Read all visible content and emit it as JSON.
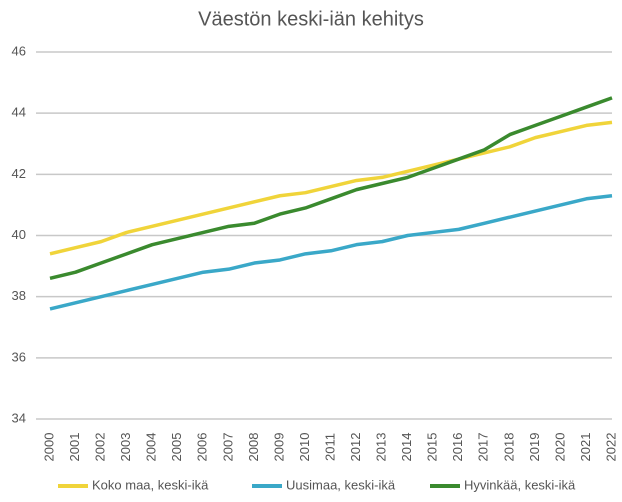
{
  "chart_data": {
    "type": "line",
    "title": "Väestön keski-iän kehitys",
    "categories": [
      "2000",
      "2001",
      "2002",
      "2003",
      "2004",
      "2005",
      "2006",
      "2007",
      "2008",
      "2009",
      "2010",
      "2011",
      "2012",
      "2013",
      "2014",
      "2015",
      "2016",
      "2017",
      "2018",
      "2019",
      "2020",
      "2021",
      "2022"
    ],
    "series": [
      {
        "name": "Koko maa, keski-ikä",
        "color": "#f0d43a",
        "values": [
          39.4,
          39.6,
          39.8,
          40.1,
          40.3,
          40.5,
          40.7,
          40.9,
          41.1,
          41.3,
          41.4,
          41.6,
          41.8,
          41.9,
          42.1,
          42.3,
          42.5,
          42.7,
          42.9,
          43.2,
          43.4,
          43.6,
          43.7
        ]
      },
      {
        "name": "Uusimaa, keski-ikä",
        "color": "#3aa8c8",
        "values": [
          37.6,
          37.8,
          38.0,
          38.2,
          38.4,
          38.6,
          38.8,
          38.9,
          39.1,
          39.2,
          39.4,
          39.5,
          39.7,
          39.8,
          40.0,
          40.1,
          40.2,
          40.4,
          40.6,
          40.8,
          41.0,
          41.2,
          41.3
        ]
      },
      {
        "name": "Hyvinkää, keski-ikä",
        "color": "#3a8a2e",
        "values": [
          38.6,
          38.8,
          39.1,
          39.4,
          39.7,
          39.9,
          40.1,
          40.3,
          40.4,
          40.7,
          40.9,
          41.2,
          41.5,
          41.7,
          41.9,
          42.2,
          42.5,
          42.8,
          43.3,
          43.6,
          43.9,
          44.2,
          44.5
        ]
      }
    ],
    "ylim": [
      34,
      46
    ],
    "yticks": [
      34,
      36,
      38,
      40,
      42,
      44,
      46
    ],
    "grid": true,
    "legend": "bottom"
  }
}
